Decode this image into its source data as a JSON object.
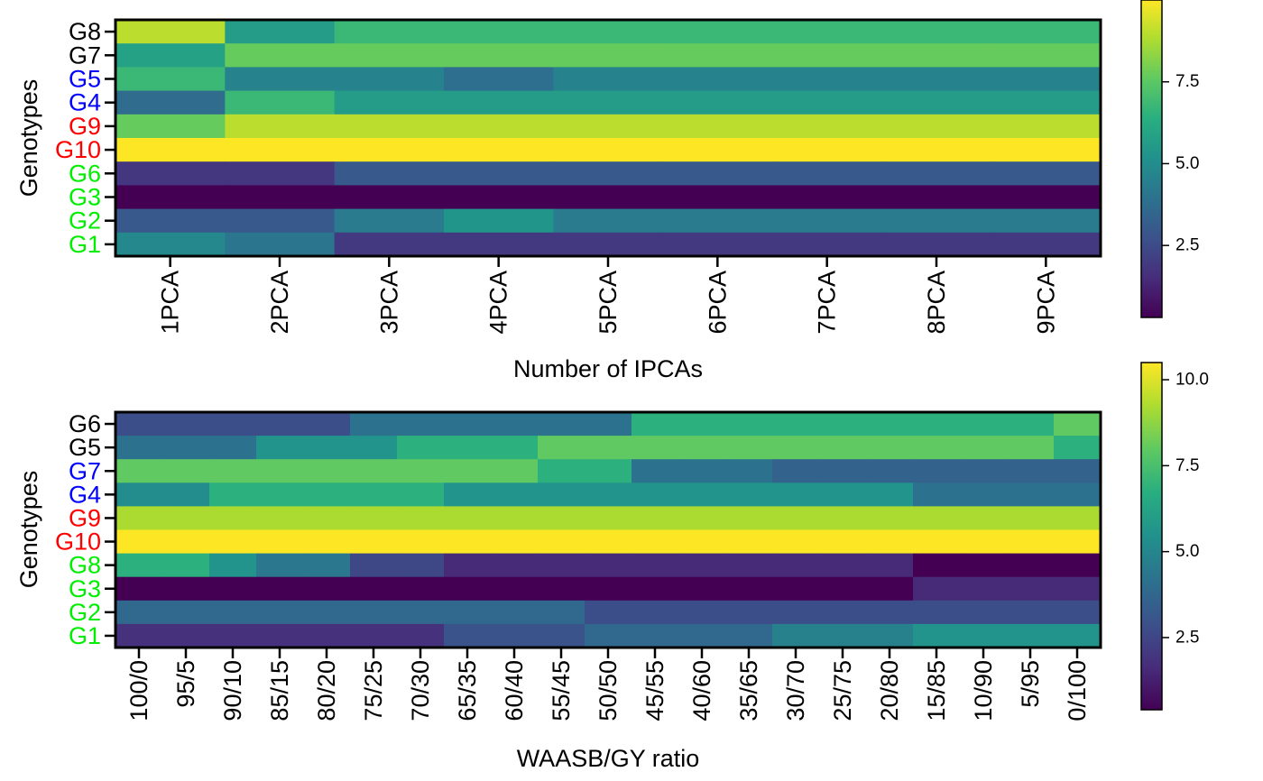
{
  "chart_data": [
    {
      "type": "heatmap",
      "xlabel": "Number of IPCAs",
      "ylabel": "Genotypes",
      "x": [
        "1PCA",
        "2PCA",
        "3PCA",
        "4PCA",
        "5PCA",
        "6PCA",
        "7PCA",
        "8PCA",
        "9PCA"
      ],
      "y": [
        "G8",
        "G7",
        "G5",
        "G4",
        "G9",
        "G10",
        "G6",
        "G3",
        "G2",
        "G1"
      ],
      "y_label_colors": [
        "#000000",
        "#000000",
        "#0000FF",
        "#0000FF",
        "#FF0000",
        "#FF0000",
        "#00EE00",
        "#00EE00",
        "#00EE00",
        "#00EE00"
      ],
      "values": [
        [
          9.0,
          5.6,
          6.8,
          6.8,
          6.8,
          6.8,
          6.8,
          6.8,
          6.8
        ],
        [
          5.8,
          7.7,
          7.7,
          7.7,
          7.7,
          7.7,
          7.7,
          7.7,
          7.7
        ],
        [
          6.8,
          4.6,
          4.6,
          3.8,
          4.6,
          4.6,
          4.6,
          4.6,
          4.6
        ],
        [
          3.7,
          6.8,
          5.6,
          5.6,
          5.6,
          5.6,
          5.6,
          5.6,
          5.6
        ],
        [
          7.7,
          9.0,
          9.0,
          9.0,
          9.0,
          9.0,
          9.0,
          9.0,
          9.0
        ],
        [
          10.0,
          10.0,
          10.0,
          10.0,
          10.0,
          10.0,
          10.0,
          10.0,
          10.0
        ],
        [
          1.8,
          1.8,
          3.0,
          3.0,
          3.0,
          3.0,
          3.0,
          3.0,
          3.0
        ],
        [
          0.3,
          0.3,
          0.3,
          0.3,
          0.3,
          0.3,
          0.3,
          0.3,
          0.3
        ],
        [
          3.0,
          3.0,
          4.3,
          5.3,
          4.3,
          4.3,
          4.3,
          4.3,
          4.3
        ],
        [
          4.8,
          4.1,
          1.9,
          1.9,
          1.9,
          1.9,
          1.9,
          1.9,
          1.9
        ]
      ],
      "colorbar": {
        "min": 0.3,
        "max": 10.0,
        "ticks": [
          "2.5",
          "5.0",
          "7.5"
        ],
        "tick_values": [
          2.5,
          5.0,
          7.5
        ]
      }
    },
    {
      "type": "heatmap",
      "xlabel": "WAASB/GY ratio",
      "ylabel": "Genotypes",
      "x": [
        "100/0",
        "95/5",
        "90/10",
        "85/15",
        "80/20",
        "75/25",
        "70/30",
        "65/35",
        "60/40",
        "55/45",
        "50/50",
        "45/55",
        "40/60",
        "35/65",
        "30/70",
        "25/75",
        "20/80",
        "15/85",
        "10/90",
        "5/95",
        "0/100"
      ],
      "y": [
        "G6",
        "G5",
        "G7",
        "G4",
        "G9",
        "G10",
        "G8",
        "G3",
        "G2",
        "G1"
      ],
      "y_label_colors": [
        "#000000",
        "#000000",
        "#0000FF",
        "#0000FF",
        "#FF0000",
        "#FF0000",
        "#00EE00",
        "#00EE00",
        "#00EE00",
        "#00EE00"
      ],
      "values": [
        [
          2.8,
          2.8,
          2.8,
          2.8,
          2.8,
          4.2,
          4.2,
          4.2,
          4.2,
          4.2,
          4.2,
          6.8,
          6.8,
          6.8,
          6.8,
          6.8,
          6.8,
          6.8,
          6.8,
          6.8,
          8.0
        ],
        [
          4.2,
          4.2,
          4.2,
          5.6,
          5.6,
          5.6,
          6.8,
          6.8,
          6.8,
          8.0,
          8.0,
          8.0,
          8.0,
          8.0,
          8.0,
          8.0,
          8.0,
          8.0,
          8.0,
          8.0,
          6.8
        ],
        [
          8.0,
          8.0,
          8.0,
          8.0,
          8.0,
          8.0,
          8.0,
          8.0,
          8.0,
          6.8,
          6.8,
          4.2,
          4.2,
          4.2,
          3.6,
          3.6,
          3.6,
          3.6,
          3.6,
          3.6,
          3.6
        ],
        [
          5.3,
          5.3,
          6.8,
          6.8,
          6.8,
          6.8,
          6.8,
          5.6,
          5.6,
          5.6,
          5.6,
          5.6,
          5.6,
          5.6,
          5.6,
          5.6,
          5.6,
          4.2,
          4.2,
          4.2,
          4.2
        ],
        [
          9.2,
          9.2,
          9.2,
          9.2,
          9.2,
          9.2,
          9.2,
          9.2,
          9.2,
          9.2,
          9.2,
          9.2,
          9.2,
          9.2,
          9.2,
          9.2,
          9.2,
          9.2,
          9.2,
          9.2,
          9.2
        ],
        [
          10.5,
          10.5,
          10.5,
          10.5,
          10.5,
          10.5,
          10.5,
          10.5,
          10.5,
          10.5,
          10.5,
          10.5,
          10.5,
          10.5,
          10.5,
          10.5,
          10.5,
          10.5,
          10.5,
          10.5,
          10.5
        ],
        [
          6.8,
          6.8,
          5.6,
          4.4,
          4.4,
          2.6,
          2.6,
          1.6,
          1.6,
          1.6,
          1.6,
          1.6,
          1.6,
          1.6,
          1.6,
          1.6,
          1.6,
          0.4,
          0.4,
          0.4,
          0.4
        ],
        [
          0.4,
          0.4,
          0.4,
          0.4,
          0.4,
          0.4,
          0.4,
          0.4,
          0.4,
          0.4,
          0.4,
          0.4,
          0.4,
          0.4,
          0.4,
          0.4,
          0.4,
          1.6,
          1.6,
          1.6,
          1.6
        ],
        [
          3.8,
          3.8,
          3.8,
          3.8,
          3.8,
          3.8,
          3.8,
          3.8,
          3.8,
          3.8,
          2.8,
          2.8,
          2.8,
          2.8,
          2.8,
          2.8,
          2.8,
          2.8,
          2.8,
          2.8,
          2.8
        ],
        [
          1.8,
          1.8,
          1.8,
          1.8,
          1.8,
          1.8,
          1.8,
          3.0,
          3.0,
          3.0,
          3.8,
          3.8,
          3.8,
          3.8,
          4.8,
          4.8,
          4.8,
          5.6,
          5.6,
          5.6,
          5.6
        ]
      ],
      "colorbar": {
        "min": 0.4,
        "max": 10.5,
        "ticks": [
          "2.5",
          "5.0",
          "7.5",
          "10.0"
        ],
        "tick_values": [
          2.5,
          5.0,
          7.5,
          10.0
        ]
      }
    }
  ]
}
